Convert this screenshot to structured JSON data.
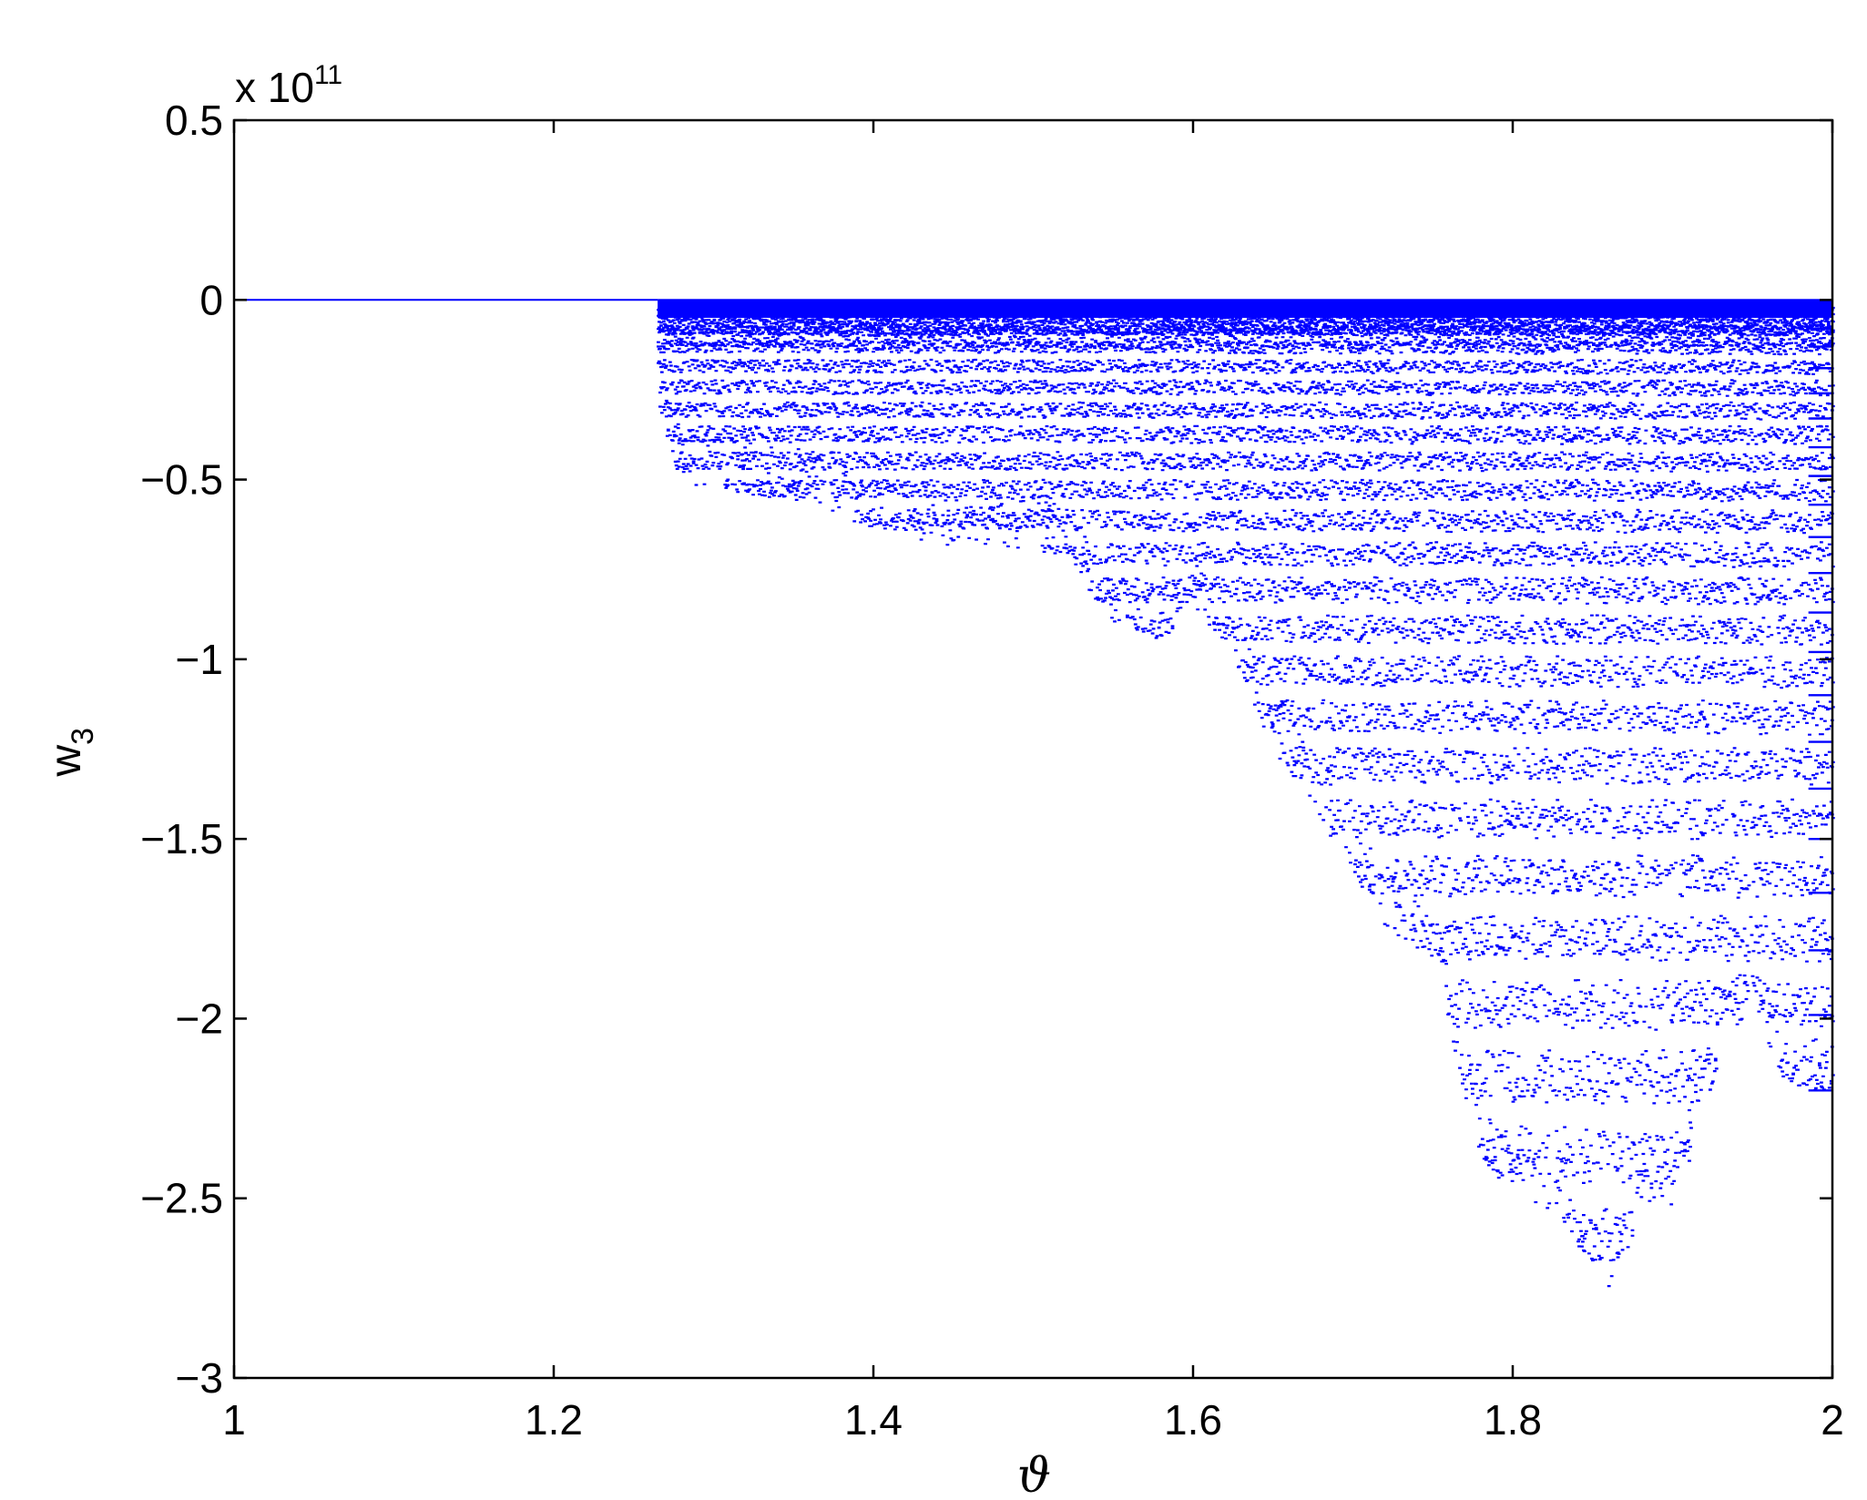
{
  "chart_data": {
    "type": "scatter",
    "title": "",
    "xlabel": "ϑ",
    "ylabel_base": "w",
    "ylabel_sub": "3",
    "y_multiplier_base": "x 10",
    "y_multiplier_exp": "11",
    "xlim": [
      1,
      2
    ],
    "ylim": [
      -3,
      0.5
    ],
    "y_scale_factor": 100000000000.0,
    "x_ticks": [
      1,
      1.2,
      1.4,
      1.6,
      1.8,
      2
    ],
    "x_tick_labels": [
      "1",
      "1.2",
      "1.4",
      "1.6",
      "1.8",
      "2"
    ],
    "y_ticks": [
      -3,
      -2.5,
      -2,
      -1.5,
      -1,
      -0.5,
      0,
      0.5
    ],
    "y_tick_labels": [
      "−3",
      "−2.5",
      "−2",
      "−1.5",
      "−1",
      "−0.5",
      "0",
      "0.5"
    ],
    "grid": false,
    "legend": "none",
    "series_color": "#0000ff",
    "onset_x": 1.265,
    "zero_line": {
      "x": [
        1.0,
        1.265
      ],
      "y": [
        0,
        0
      ]
    },
    "lower_envelope": {
      "x": [
        1.265,
        1.28,
        1.3,
        1.33,
        1.36,
        1.4,
        1.44,
        1.47,
        1.5,
        1.52,
        1.55,
        1.58,
        1.6,
        1.62,
        1.65,
        1.68,
        1.7,
        1.72,
        1.75,
        1.78,
        1.8,
        1.83,
        1.86,
        1.88,
        1.9,
        1.93,
        1.95,
        1.97,
        2.0
      ],
      "y": [
        -0.3,
        -0.52,
        -0.52,
        -0.55,
        -0.57,
        -0.64,
        -0.68,
        -0.7,
        -0.7,
        -0.72,
        -0.9,
        -0.95,
        -0.85,
        -0.96,
        -1.25,
        -1.45,
        -1.6,
        -1.74,
        -1.85,
        -2.4,
        -2.48,
        -2.55,
        -2.78,
        -2.55,
        -2.55,
        -2.1,
        -1.95,
        -2.2,
        -2.2
      ]
    },
    "level_spacing_near_zero": 0.025,
    "right_edge_levels": [
      -0.08,
      -0.13,
      -0.19,
      -0.26,
      -0.33,
      -0.41,
      -0.49,
      -0.57,
      -0.66,
      -0.76,
      -0.87,
      -0.98,
      -1.1,
      -1.23,
      -1.36,
      -1.5,
      -1.65,
      -1.81,
      -1.99,
      -2.2
    ]
  }
}
